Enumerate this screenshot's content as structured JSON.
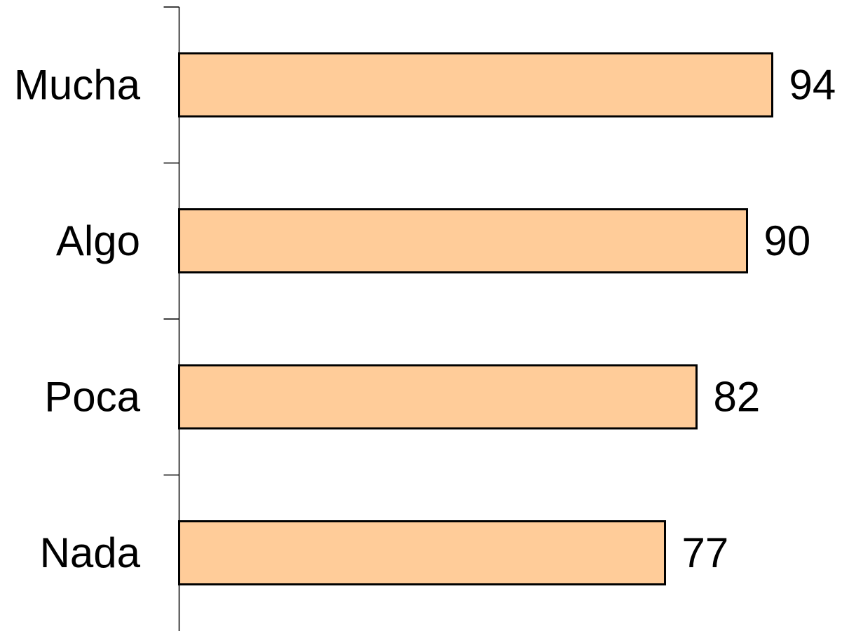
{
  "chart_data": {
    "type": "bar",
    "orientation": "horizontal",
    "categories": [
      "Mucha",
      "Algo",
      "Poca",
      "Nada"
    ],
    "values": [
      94,
      90,
      82,
      77
    ],
    "title": "",
    "xlabel": "",
    "ylabel": "",
    "xlim": [
      0,
      100
    ],
    "grid": false,
    "legend": "none",
    "bar_color": "#FFCC99",
    "bar_stroke": "#000000"
  }
}
